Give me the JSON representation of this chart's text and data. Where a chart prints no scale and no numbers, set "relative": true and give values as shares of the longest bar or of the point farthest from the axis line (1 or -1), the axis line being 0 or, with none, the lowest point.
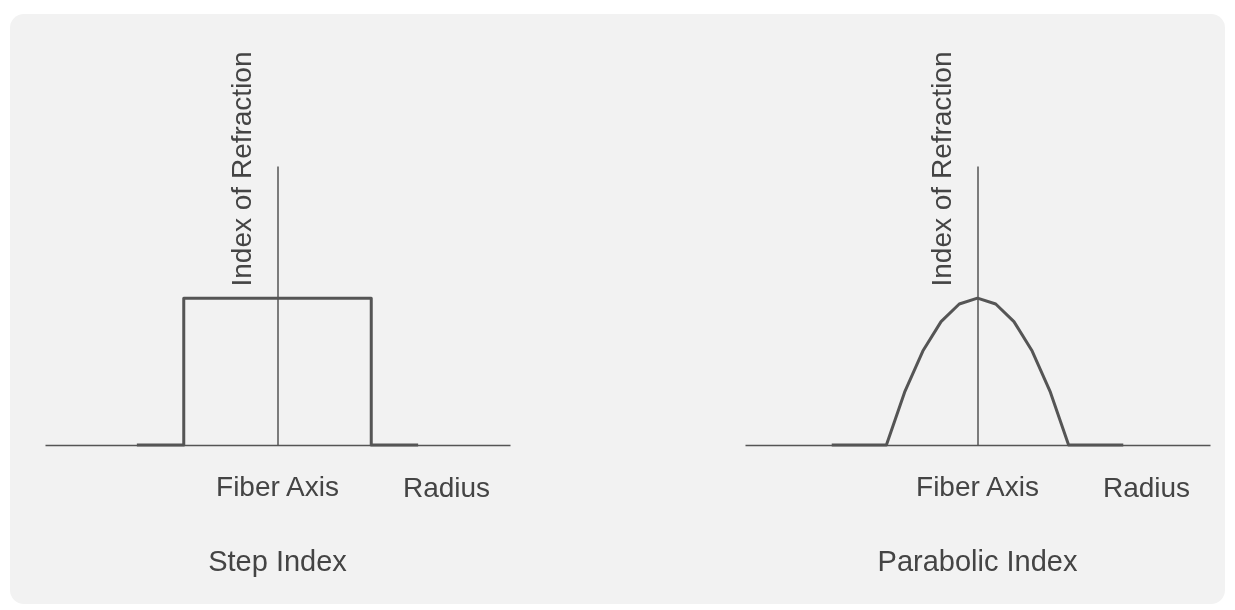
{
  "chart_data": [
    {
      "type": "step",
      "title": "Step Index",
      "xlabel": "Radius",
      "ylabel": "Index of Refraction",
      "relative": true,
      "annotations": [
        "Fiber Axis"
      ],
      "categories": [
        null,
        null,
        null,
        null,
        null,
        null,
        null
      ],
      "series": [
        {
          "color": "#555555",
          "values": [
            0,
            1,
            1,
            1,
            1,
            0,
            0
          ]
        }
      ]
    },
    {
      "type": "line",
      "title": "Parabolic Index",
      "xlabel": "Radius",
      "ylabel": "Index of Refraction",
      "relative": true,
      "annotations": [
        "Fiber Axis"
      ],
      "categories": [
        null,
        null,
        null,
        null,
        null,
        null,
        null,
        null,
        null,
        null,
        null,
        null,
        null,
        null,
        null,
        null,
        null
      ],
      "series": [
        {
          "color": "#555555",
          "values": [
            0,
            0,
            0,
            0,
            0.36,
            0.64,
            0.84,
            0.96,
            1,
            0.96,
            0.84,
            0.64,
            0.36,
            0,
            0,
            0,
            0
          ]
        }
      ]
    }
  ]
}
